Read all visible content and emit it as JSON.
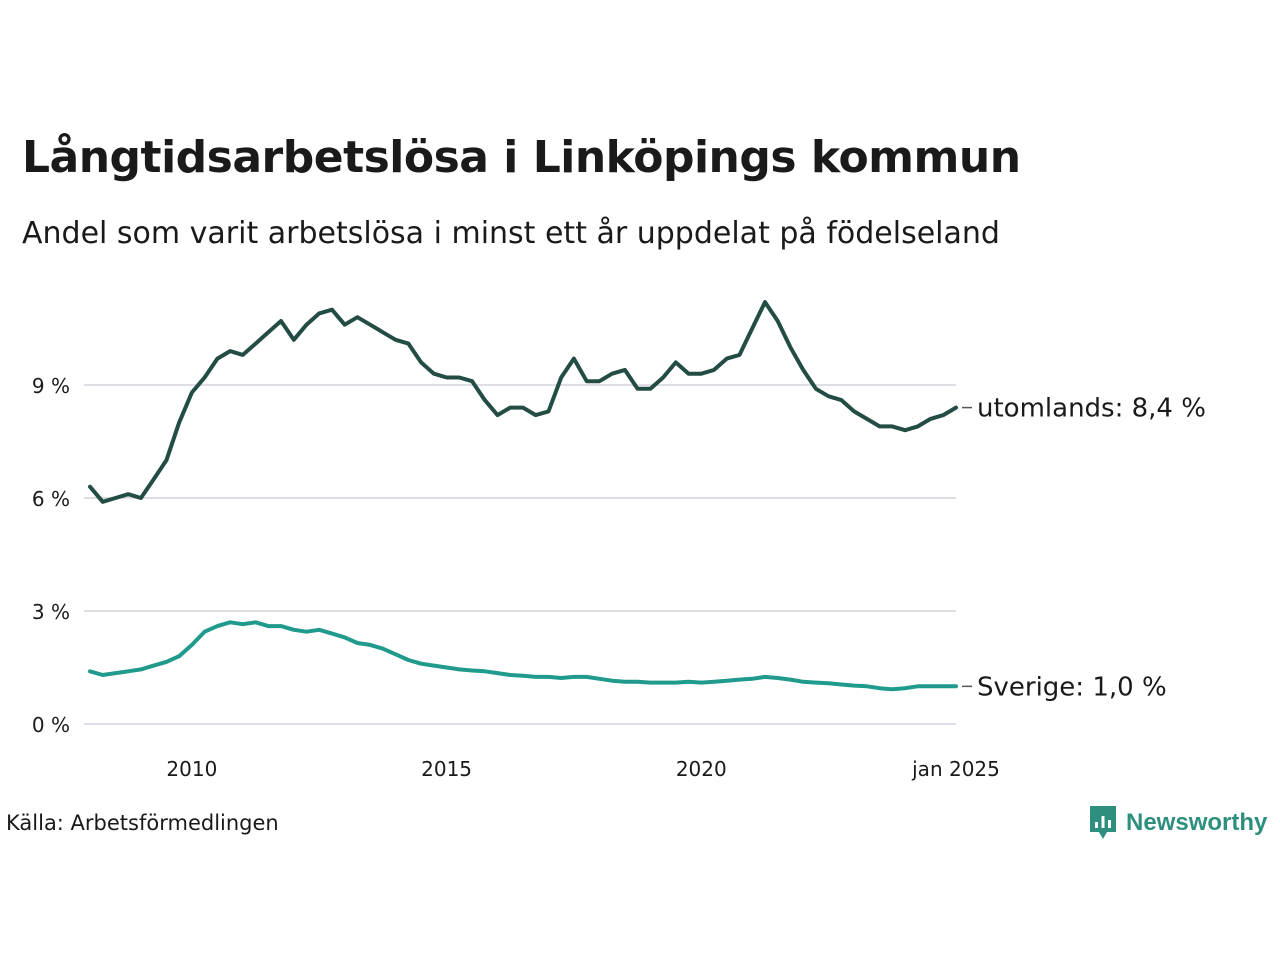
{
  "header": {
    "title": "Långtidsarbetslösa i Linköpings kommun",
    "subtitle": "Andel som varit arbetslösa i minst ett år uppdelat på födelseland"
  },
  "footer": {
    "source": "Källa: Arbetsförmedlingen",
    "brand": "Newsworthy"
  },
  "colors": {
    "utomlands": "#234c45",
    "sverige": "#1f9a8c",
    "grid": "#dedee4",
    "brand": "#2f8f7f"
  },
  "chart_data": {
    "type": "line",
    "title": "Långtidsarbetslösa i Linköpings kommun",
    "xlabel": "",
    "ylabel": "",
    "xlim": [
      2008.0,
      2025.0
    ],
    "ylim": [
      0,
      12
    ],
    "y_ticks": [
      0,
      3,
      6,
      9
    ],
    "y_tick_labels": [
      "0 %",
      "3 %",
      "6 %",
      "9 %"
    ],
    "x_ticks": [
      2010,
      2015,
      2020,
      2025
    ],
    "x_tick_labels": [
      "2010",
      "2015",
      "2020",
      "jan 2025"
    ],
    "grid": true,
    "series": [
      {
        "name": "utomlands",
        "end_label": "utomlands: 8,4 %",
        "x": [
          2008.0,
          2008.25,
          2008.5,
          2008.75,
          2009.0,
          2009.25,
          2009.5,
          2009.75,
          2010.0,
          2010.25,
          2010.5,
          2010.75,
          2011.0,
          2011.25,
          2011.5,
          2011.75,
          2012.0,
          2012.25,
          2012.5,
          2012.75,
          2013.0,
          2013.25,
          2013.5,
          2013.75,
          2014.0,
          2014.25,
          2014.5,
          2014.75,
          2015.0,
          2015.25,
          2015.5,
          2015.75,
          2016.0,
          2016.25,
          2016.5,
          2016.75,
          2017.0,
          2017.25,
          2017.5,
          2017.75,
          2018.0,
          2018.25,
          2018.5,
          2018.75,
          2019.0,
          2019.25,
          2019.5,
          2019.75,
          2020.0,
          2020.25,
          2020.5,
          2020.75,
          2021.0,
          2021.25,
          2021.5,
          2021.75,
          2022.0,
          2022.25,
          2022.5,
          2022.75,
          2023.0,
          2023.25,
          2023.5,
          2023.75,
          2024.0,
          2024.25,
          2024.5,
          2024.75,
          2025.0
        ],
        "values": [
          6.3,
          5.9,
          6.0,
          6.1,
          6.0,
          6.5,
          7.0,
          8.0,
          8.8,
          9.2,
          9.7,
          9.9,
          9.8,
          10.1,
          10.4,
          10.7,
          10.2,
          10.6,
          10.9,
          11.0,
          10.6,
          10.8,
          10.6,
          10.4,
          10.2,
          10.1,
          9.6,
          9.3,
          9.2,
          9.2,
          9.1,
          8.6,
          8.2,
          8.4,
          8.4,
          8.2,
          8.3,
          9.2,
          9.7,
          9.1,
          9.1,
          9.3,
          9.4,
          8.9,
          8.9,
          9.2,
          9.6,
          9.3,
          9.3,
          9.4,
          9.7,
          9.8,
          10.5,
          11.2,
          10.7,
          10.0,
          9.4,
          8.9,
          8.7,
          8.6,
          8.3,
          8.1,
          7.9,
          7.9,
          7.8,
          7.9,
          8.1,
          8.2,
          8.4
        ]
      },
      {
        "name": "Sverige",
        "end_label": "Sverige: 1,0 %",
        "x": [
          2008.0,
          2008.25,
          2008.5,
          2008.75,
          2009.0,
          2009.25,
          2009.5,
          2009.75,
          2010.0,
          2010.25,
          2010.5,
          2010.75,
          2011.0,
          2011.25,
          2011.5,
          2011.75,
          2012.0,
          2012.25,
          2012.5,
          2012.75,
          2013.0,
          2013.25,
          2013.5,
          2013.75,
          2014.0,
          2014.25,
          2014.5,
          2014.75,
          2015.0,
          2015.25,
          2015.5,
          2015.75,
          2016.0,
          2016.25,
          2016.5,
          2016.75,
          2017.0,
          2017.25,
          2017.5,
          2017.75,
          2018.0,
          2018.25,
          2018.5,
          2018.75,
          2019.0,
          2019.25,
          2019.5,
          2019.75,
          2020.0,
          2020.25,
          2020.5,
          2020.75,
          2021.0,
          2021.25,
          2021.5,
          2021.75,
          2022.0,
          2022.25,
          2022.5,
          2022.75,
          2023.0,
          2023.25,
          2023.5,
          2023.75,
          2024.0,
          2024.25,
          2024.5,
          2024.75,
          2025.0
        ],
        "values": [
          1.4,
          1.3,
          1.35,
          1.4,
          1.45,
          1.55,
          1.65,
          1.8,
          2.1,
          2.45,
          2.6,
          2.7,
          2.65,
          2.7,
          2.6,
          2.6,
          2.5,
          2.45,
          2.5,
          2.4,
          2.3,
          2.15,
          2.1,
          2.0,
          1.85,
          1.7,
          1.6,
          1.55,
          1.5,
          1.45,
          1.42,
          1.4,
          1.35,
          1.3,
          1.28,
          1.25,
          1.25,
          1.22,
          1.25,
          1.25,
          1.2,
          1.15,
          1.12,
          1.12,
          1.1,
          1.1,
          1.1,
          1.12,
          1.1,
          1.12,
          1.15,
          1.18,
          1.2,
          1.25,
          1.22,
          1.18,
          1.12,
          1.1,
          1.08,
          1.05,
          1.02,
          1.0,
          0.95,
          0.92,
          0.95,
          1.0,
          1.0,
          1.0,
          1.0
        ]
      }
    ]
  }
}
